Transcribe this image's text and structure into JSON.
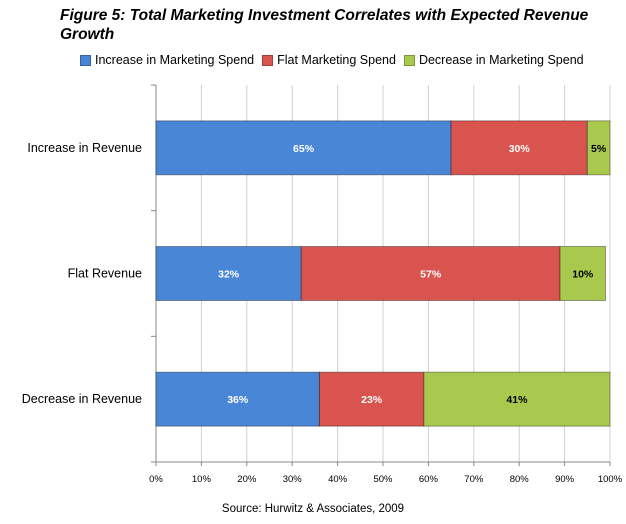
{
  "title": "Figure 5: Total Marketing Investment Correlates with Expected Revenue Growth",
  "source": "Source: Hurwitz & Associates, 2009",
  "chart_data": {
    "type": "bar",
    "orientation": "horizontal",
    "stacked": "percent",
    "categories": [
      "Increase in Revenue",
      "Flat Revenue",
      "Decrease in Revenue"
    ],
    "series": [
      {
        "name": "Increase in Marketing Spend",
        "values": [
          65,
          32,
          36
        ],
        "labels": [
          "65%",
          "32%",
          "36%"
        ],
        "color": "#4a86d6",
        "label_color": "#ffffff"
      },
      {
        "name": "Flat Marketing Spend",
        "values": [
          30,
          57,
          23
        ],
        "labels": [
          "30%",
          "57%",
          "23%"
        ],
        "color": "#d9534f",
        "label_color": "#ffffff"
      },
      {
        "name": "Decrease in Marketing Spend",
        "values": [
          5,
          10,
          41
        ],
        "labels": [
          "5%",
          "10%",
          "41%"
        ],
        "color": "#a9c84e",
        "label_color": "#000000"
      }
    ],
    "xlim": [
      0,
      100
    ],
    "xticks": [
      "0%",
      "10%",
      "20%",
      "30%",
      "40%",
      "50%",
      "60%",
      "70%",
      "80%",
      "90%",
      "100%"
    ],
    "grid": true,
    "legend": "top"
  }
}
